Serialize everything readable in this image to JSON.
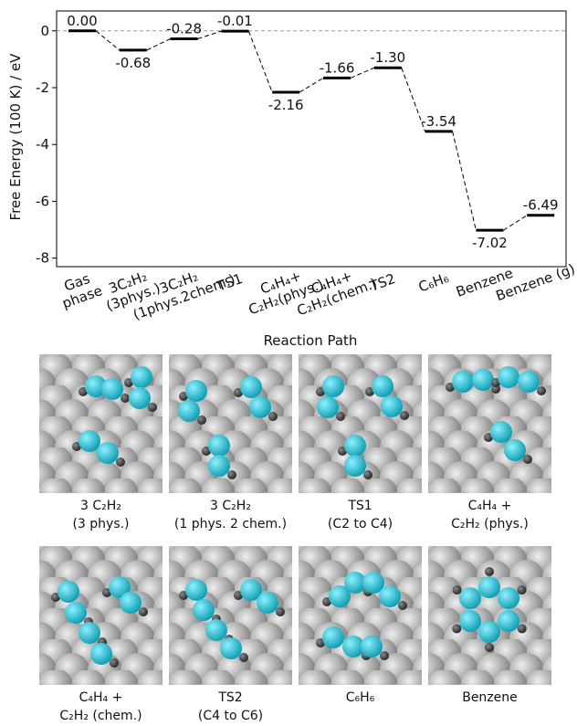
{
  "chart_data": {
    "type": "energy_diagram",
    "ylabel": "Free Energy (100 K) / eV",
    "xlabel": "Reaction Path",
    "categories": [
      "Gas\nphase",
      "3C₂H₂\n(3phys.)",
      "3C₂H₂\n(1phys.2chem.)",
      "TS1",
      "C₄H₄+\nC₂H₂(phys.)",
      "C₄H₄+\nC₂H₂(chem.)",
      "TS2",
      "C₆H₆",
      "Benzene",
      "Benzene (g)"
    ],
    "values": [
      0.0,
      -0.68,
      -0.28,
      -0.01,
      -2.16,
      -1.66,
      -1.3,
      -3.54,
      -7.02,
      -6.49
    ],
    "value_labels": [
      "0.00",
      "-0.68",
      "-0.28",
      "-0.01",
      "-2.16",
      "-1.66",
      "-1.30",
      "-3.54",
      "-7.02",
      "-6.49"
    ],
    "color": "#000000",
    "reference_line": 0,
    "ylim": [
      -8.3,
      0.7
    ],
    "yticks": [
      0,
      -2,
      -4,
      -6,
      -8
    ]
  },
  "panels": [
    {
      "caption": [
        "3 C₂H₂",
        "(3 phys.)"
      ]
    },
    {
      "caption": [
        "3 C₂H₂",
        "(1 phys. 2 chem.)"
      ]
    },
    {
      "caption": [
        "TS1",
        "(C2 to C4)"
      ]
    },
    {
      "caption": [
        "C₄H₄ +",
        "C₂H₂ (phys.)"
      ]
    },
    {
      "caption": [
        "C₄H₄ +",
        "C₂H₂ (chem.)"
      ]
    },
    {
      "caption": [
        "TS2",
        "(C4 to C6)"
      ]
    },
    {
      "caption": [
        "C₆H₆"
      ]
    },
    {
      "caption": [
        "Benzene"
      ]
    }
  ]
}
